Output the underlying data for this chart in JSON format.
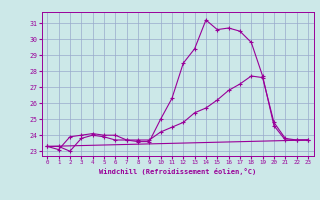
{
  "xlabel": "Windchill (Refroidissement éolien,°C)",
  "bg_color": "#cce8e8",
  "line_color": "#990099",
  "grid_color": "#99aacc",
  "xlim": [
    -0.5,
    23.5
  ],
  "ylim": [
    22.7,
    31.7
  ],
  "yticks": [
    23,
    24,
    25,
    26,
    27,
    28,
    29,
    30,
    31
  ],
  "xticks": [
    0,
    1,
    2,
    3,
    4,
    5,
    6,
    7,
    8,
    9,
    10,
    11,
    12,
    13,
    14,
    15,
    16,
    17,
    18,
    19,
    20,
    21,
    22,
    23
  ],
  "line1_x": [
    0,
    1,
    2,
    3,
    4,
    5,
    6,
    7,
    8,
    9,
    10,
    11,
    12,
    13,
    14,
    15,
    16,
    17,
    18,
    19,
    20,
    21,
    22,
    23
  ],
  "line1_y": [
    23.3,
    23.3,
    23.0,
    23.8,
    24.0,
    23.9,
    23.7,
    23.7,
    23.6,
    23.6,
    25.0,
    26.3,
    28.5,
    29.4,
    31.2,
    30.6,
    30.7,
    30.5,
    29.8,
    27.7,
    24.6,
    23.7,
    23.7,
    23.7
  ],
  "line2_x": [
    0,
    1,
    2,
    3,
    4,
    5,
    6,
    7,
    8,
    9,
    10,
    11,
    12,
    13,
    14,
    15,
    16,
    17,
    18,
    19,
    20,
    21,
    22,
    23
  ],
  "line2_y": [
    23.3,
    23.1,
    23.9,
    24.0,
    24.1,
    24.0,
    24.0,
    23.7,
    23.7,
    23.7,
    24.2,
    24.5,
    24.8,
    25.4,
    25.7,
    26.2,
    26.8,
    27.2,
    27.7,
    27.6,
    24.8,
    23.8,
    23.7,
    23.7
  ],
  "line3_x": [
    0,
    23
  ],
  "line3_y": [
    23.3,
    23.7
  ],
  "font_family": "monospace"
}
